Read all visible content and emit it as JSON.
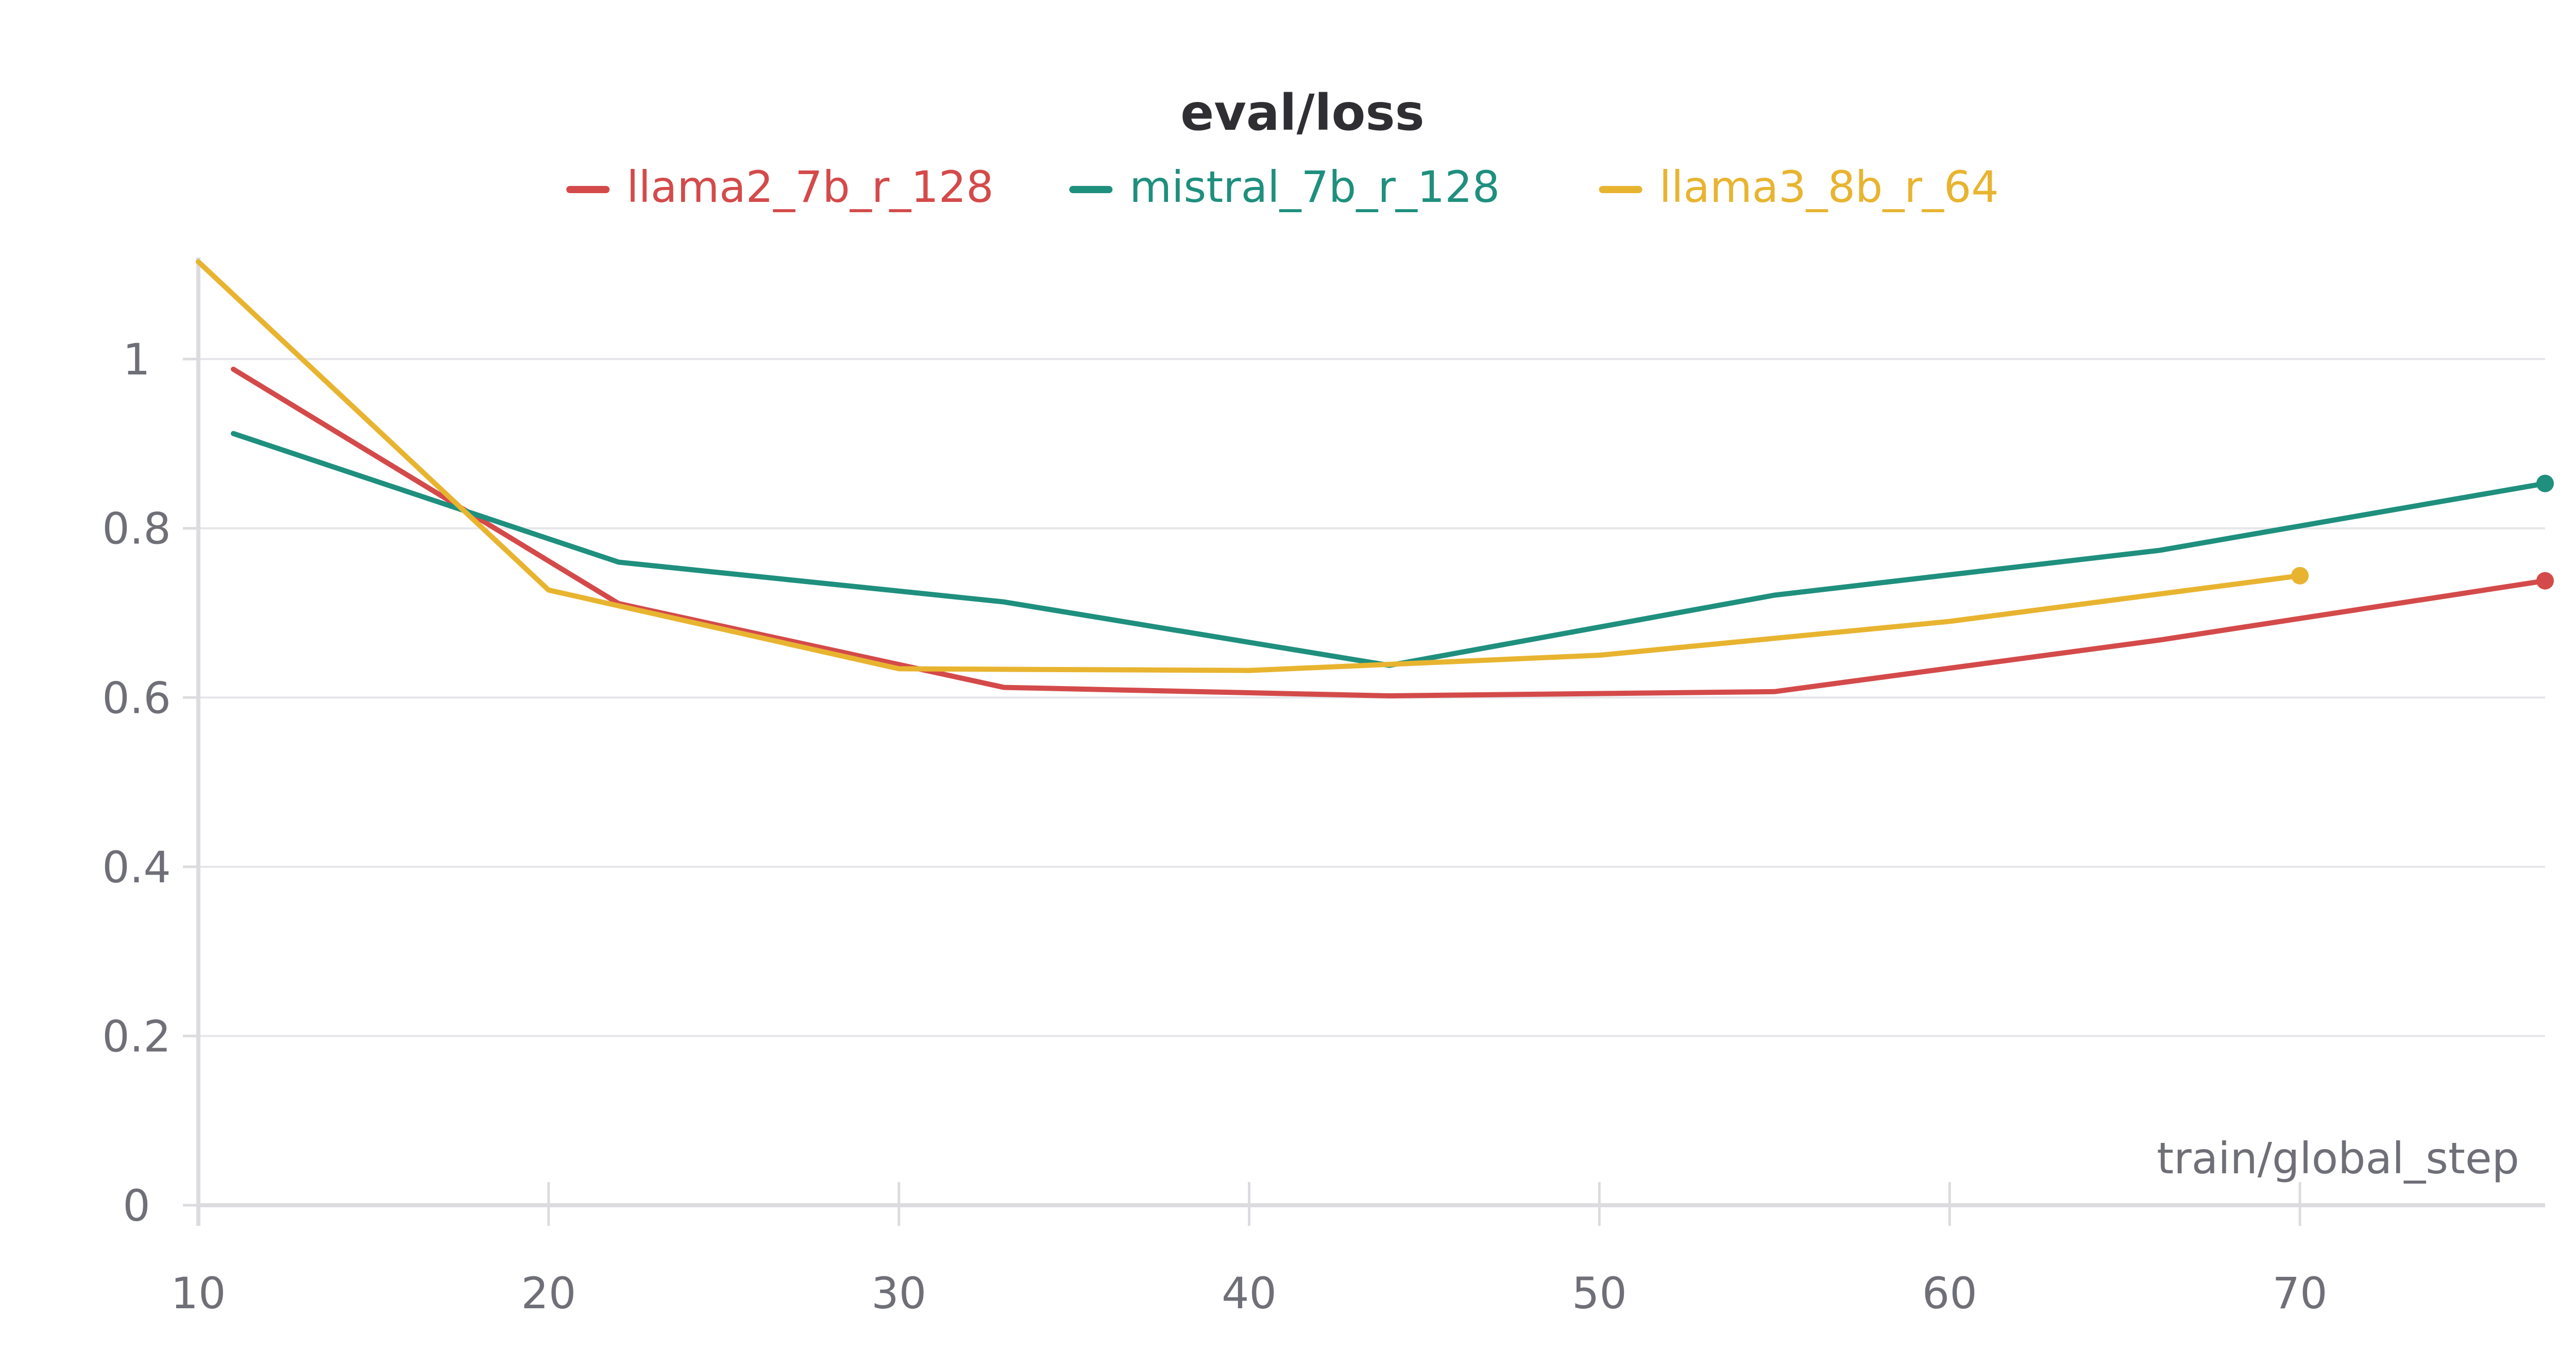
{
  "chart_data": {
    "type": "line",
    "title": "eval/loss",
    "xlabel": "train/global_step",
    "ylabel": "",
    "xlim": [
      10,
      77
    ],
    "ylim": [
      0,
      1.12
    ],
    "x_ticks": [
      10,
      20,
      30,
      40,
      50,
      60,
      70
    ],
    "y_ticks": [
      0,
      0.2,
      0.4,
      0.6,
      0.8,
      1
    ],
    "x_tick_labels": [
      "10",
      "20",
      "30",
      "40",
      "50",
      "60",
      "70"
    ],
    "y_tick_labels": [
      "0",
      "0.2",
      "0.4",
      "0.6",
      "0.8",
      "1"
    ],
    "grid": true,
    "legend_position": "top-center",
    "series": [
      {
        "name": "llama2_7b_r_128",
        "color": "#d44a4a",
        "x": [
          11,
          22,
          33,
          44,
          55,
          66,
          77
        ],
        "y": [
          0.988,
          0.711,
          0.612,
          0.602,
          0.607,
          0.668,
          0.738
        ]
      },
      {
        "name": "mistral_7b_r_128",
        "color": "#1f8f7e",
        "x": [
          11,
          22,
          33,
          44,
          55,
          66,
          77
        ],
        "y": [
          0.912,
          0.76,
          0.713,
          0.638,
          0.721,
          0.774,
          0.853
        ]
      },
      {
        "name": "llama3_8b_r_64",
        "color": "#e8b430",
        "x": [
          10,
          20,
          30,
          40,
          50,
          60,
          70
        ],
        "y": [
          1.115,
          0.727,
          0.634,
          0.632,
          0.65,
          0.69,
          0.744
        ]
      }
    ]
  }
}
